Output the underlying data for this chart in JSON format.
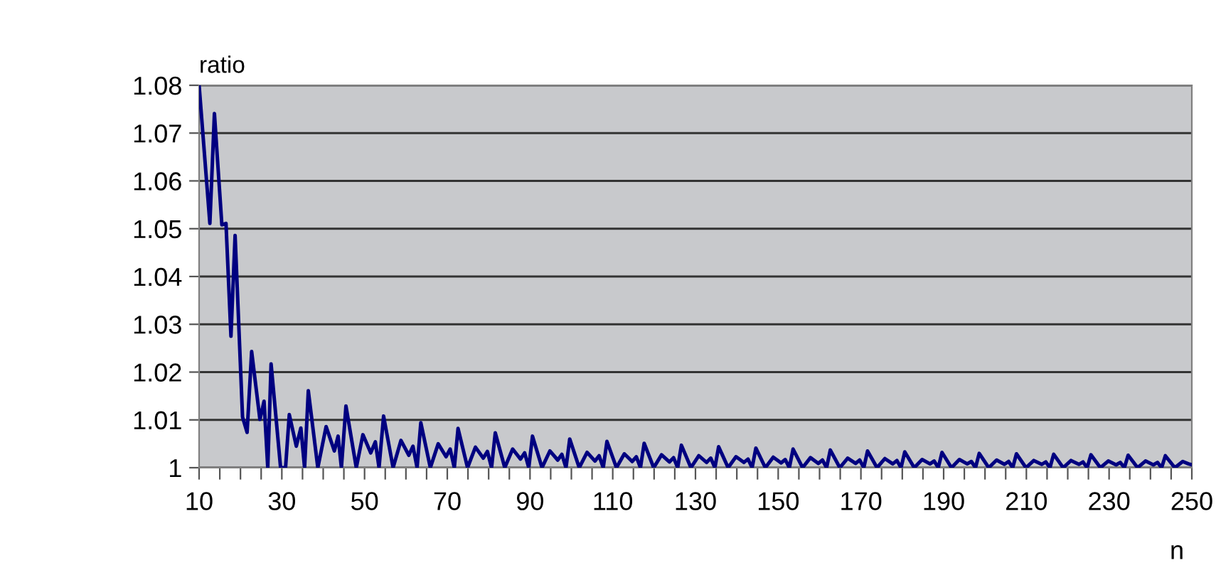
{
  "chart_data": {
    "type": "line",
    "xlabel": "n",
    "ylabel": "ratio",
    "xlim": [
      10,
      250
    ],
    "ylim": [
      1,
      1.08
    ],
    "xticks": [
      10,
      {
        "value": 15,
        "label": null
      },
      {
        "value": 20,
        "label": null
      },
      {
        "value": 25,
        "label": null
      },
      30,
      {
        "value": 35,
        "label": null
      },
      {
        "value": 40,
        "label": null
      },
      {
        "value": 45,
        "label": null
      },
      50,
      {
        "value": 55,
        "label": null
      },
      {
        "value": 60,
        "label": null
      },
      {
        "value": 65,
        "label": null
      },
      70,
      {
        "value": 75,
        "label": null
      },
      {
        "value": 80,
        "label": null
      },
      {
        "value": 85,
        "label": null
      },
      90,
      {
        "value": 95,
        "label": null
      },
      {
        "value": 100,
        "label": null
      },
      {
        "value": 105,
        "label": null
      },
      110,
      {
        "value": 115,
        "label": null
      },
      {
        "value": 120,
        "label": null
      },
      {
        "value": 125,
        "label": null
      },
      130,
      {
        "value": 135,
        "label": null
      },
      {
        "value": 140,
        "label": null
      },
      {
        "value": 145,
        "label": null
      },
      150,
      {
        "value": 155,
        "label": null
      },
      {
        "value": 160,
        "label": null
      },
      {
        "value": 165,
        "label": null
      },
      170,
      {
        "value": 175,
        "label": null
      },
      {
        "value": 180,
        "label": null
      },
      {
        "value": 185,
        "label": null
      },
      190,
      {
        "value": 195,
        "label": null
      },
      {
        "value": 200,
        "label": null
      },
      {
        "value": 205,
        "label": null
      },
      210,
      {
        "value": 215,
        "label": null
      },
      {
        "value": 220,
        "label": null
      },
      {
        "value": 225,
        "label": null
      },
      230,
      {
        "value": 235,
        "label": null
      },
      {
        "value": 240,
        "label": null
      },
      {
        "value": 245,
        "label": null
      },
      250
    ],
    "yticks": [
      1,
      1.01,
      1.02,
      1.03,
      1.04,
      1.05,
      1.06,
      1.07,
      1.08
    ],
    "grid": "y",
    "legend": false,
    "marker": "none",
    "line_style": "solid",
    "series": [
      {
        "color": "#000080",
        "x": [
          10,
          12.6,
          13.7,
          15.5,
          16.5,
          17.7,
          18.7,
          20.5,
          21.6,
          22.7,
          24.7,
          25.7,
          26.6,
          27.4,
          29.7,
          30.9,
          31.8,
          33.5,
          34.6,
          35.5,
          36.4,
          38.7,
          40.7,
          42.7,
          43.6,
          44.4,
          45.5,
          48,
          49.6,
          51.5,
          52.6,
          53.5,
          54.6,
          56.9,
          58.8,
          60.7,
          61.7,
          62.7,
          63.6,
          65.9,
          67.8,
          69.7,
          70.7,
          71.7,
          72.6,
          74.9,
          76.8,
          78.7,
          79.7,
          80.7,
          81.6,
          83.9,
          85.8,
          87.7,
          88.7,
          89.7,
          90.6,
          92.9,
          94.8,
          96.7,
          97.7,
          98.7,
          99.6,
          101.9,
          103.8,
          105.7,
          106.7,
          107.7,
          108.6,
          110.9,
          112.8,
          114.7,
          115.7,
          116.7,
          117.6,
          119.9,
          121.8,
          123.7,
          124.7,
          125.7,
          126.6,
          128.9,
          130.8,
          132.7,
          133.7,
          134.7,
          135.6,
          137.9,
          139.8,
          141.7,
          142.7,
          143.7,
          144.6,
          146.9,
          148.8,
          150.7,
          151.7,
          152.7,
          153.6,
          155.9,
          157.8,
          159.7,
          160.7,
          161.7,
          162.6,
          164.9,
          166.8,
          168.7,
          169.7,
          170.7,
          171.6,
          173.9,
          175.8,
          177.7,
          178.7,
          179.7,
          180.6,
          182.9,
          184.8,
          186.7,
          187.7,
          188.7,
          189.6,
          191.9,
          193.8,
          195.7,
          196.7,
          197.7,
          198.6,
          200.9,
          202.8,
          204.7,
          205.7,
          206.7,
          207.6,
          209.9,
          211.8,
          213.7,
          214.7,
          215.7,
          216.6,
          218.9,
          220.8,
          222.7,
          223.7,
          224.7,
          225.6,
          227.9,
          229.8,
          231.7,
          232.7,
          233.7,
          234.6,
          236.9,
          238.8,
          240.7,
          241.7,
          242.7,
          243.6,
          245.9,
          247.8,
          249.2,
          250
        ],
        "values": [
          1.08,
          1.0511,
          1.0741,
          1.0508,
          1.0511,
          1.0275,
          1.0486,
          1.0106,
          1.0074,
          1.0243,
          1.0101,
          1.0139,
          1,
          1.0217,
          1,
          1,
          1.0111,
          1.0045,
          1.0083,
          1,
          1.0161,
          1,
          1.0086,
          1.0035,
          1.0066,
          1,
          1.0129,
          1,
          1.0069,
          1.0031,
          1.0054,
          1,
          1.0108,
          1,
          1.0057,
          1.0026,
          1.0045,
          1,
          1.0094,
          1,
          1.005,
          1.0023,
          1.0039,
          1,
          1.0082,
          1,
          1.0043,
          1.002,
          1.0034,
          1,
          1.0073,
          1,
          1.0039,
          1.0018,
          1.0031,
          1,
          1.0066,
          1,
          1.0035,
          1.0016,
          1.0028,
          1,
          1.006,
          1,
          1.0032,
          1.0014,
          1.0025,
          1,
          1.0055,
          1,
          1.0029,
          1.0013,
          1.0023,
          1,
          1.0051,
          1,
          1.0027,
          1.0012,
          1.0021,
          1,
          1.0047,
          1,
          1.0025,
          1.0011,
          1.002,
          1,
          1.0044,
          1,
          1.0023,
          1.0011,
          1.0018,
          1,
          1.0041,
          1,
          1.0022,
          1.001,
          1.0017,
          1,
          1.0039,
          1,
          1.0021,
          1.0009,
          1.0016,
          1,
          1.0037,
          1,
          1.002,
          1.0009,
          1.0016,
          1,
          1.0035,
          1,
          1.0019,
          1.0008,
          1.0015,
          1,
          1.0033,
          1,
          1.0017,
          1.0008,
          1.0014,
          1,
          1.0032,
          1,
          1.0017,
          1.0008,
          1.0013,
          1,
          1.003,
          1,
          1.0016,
          1.0007,
          1.0013,
          1,
          1.0029,
          1,
          1.0015,
          1.0007,
          1.0012,
          1,
          1.0028,
          1,
          1.0015,
          1.0007,
          1.0012,
          1,
          1.0027,
          1,
          1.0014,
          1.0006,
          1.0011,
          1,
          1.0026,
          1,
          1.0014,
          1.0006,
          1.0011,
          1,
          1.0025,
          1,
          1.0013,
          1.0008,
          1.0006
        ]
      }
    ]
  }
}
